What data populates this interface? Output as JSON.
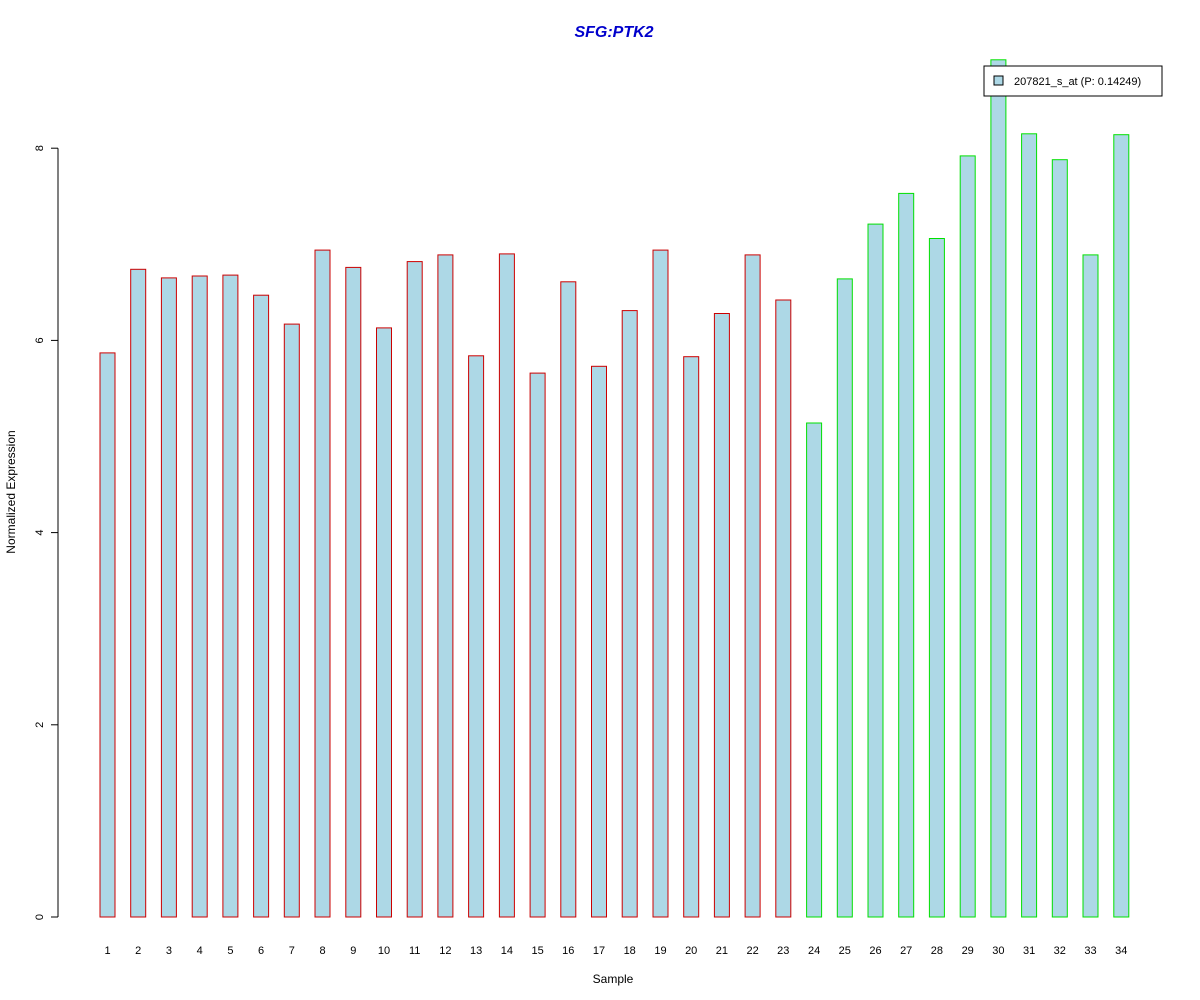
{
  "chart_data": {
    "type": "bar",
    "title": "SFG:PTK2",
    "xlabel": "Sample",
    "ylabel": "Normalized Expression",
    "categories": [
      "1",
      "2",
      "3",
      "4",
      "5",
      "6",
      "7",
      "8",
      "9",
      "10",
      "11",
      "12",
      "13",
      "14",
      "15",
      "16",
      "17",
      "18",
      "19",
      "20",
      "21",
      "22",
      "23",
      "24",
      "25",
      "26",
      "27",
      "28",
      "29",
      "30",
      "31",
      "32",
      "33",
      "34"
    ],
    "series": [
      {
        "name": "207821_s_at (P: 0.14249)",
        "values": [
          5.87,
          6.74,
          6.65,
          6.67,
          6.68,
          6.47,
          6.17,
          6.94,
          6.76,
          6.13,
          6.82,
          6.89,
          5.84,
          6.9,
          5.66,
          6.61,
          5.73,
          6.31,
          6.94,
          5.83,
          6.28,
          6.89,
          6.42,
          5.14,
          6.64,
          7.21,
          7.53,
          7.06,
          7.92,
          8.92,
          8.15,
          7.88,
          6.89,
          8.14
        ]
      }
    ],
    "group_split_index": 23,
    "ylim": [
      0,
      8.92
    ],
    "yticks": [
      0,
      2,
      4,
      6,
      8
    ],
    "grid": false,
    "legend": {
      "position": "top-right",
      "label": "207821_s_at (P: 0.14249)"
    },
    "colors": {
      "title": "#0000CC",
      "bar_fill": "#ADD8E6",
      "group1_border": "#CC0000",
      "group2_border": "#00E000",
      "axis": "#000000"
    }
  }
}
